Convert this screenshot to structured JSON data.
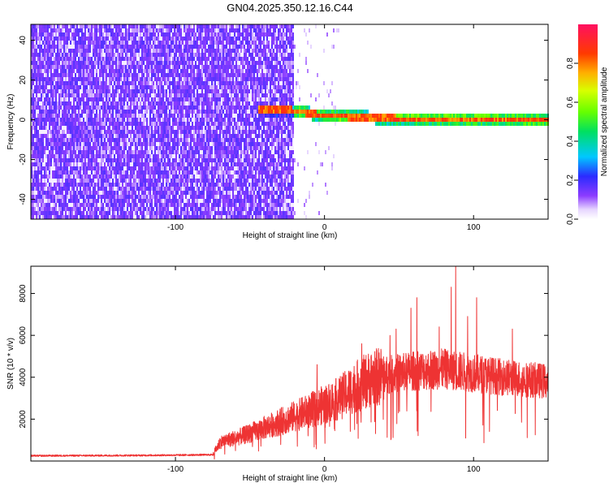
{
  "title": "GN04.2025.350.12.16.C44",
  "chart_data": [
    {
      "type": "heatmap",
      "xlabel": "Height of straight line (km)",
      "ylabel": "Frequency (Hz)",
      "xlim": [
        -197,
        150
      ],
      "ylim": [
        -50,
        48
      ],
      "x_ticks": [
        -100,
        0,
        100
      ],
      "x_tick_labels": [
        "-100",
        "0",
        "100"
      ],
      "y_ticks": [
        -40,
        -20,
        0,
        20,
        40
      ],
      "y_tick_labels": [
        "-40",
        "-20",
        "0",
        "20",
        "40"
      ],
      "colorbar": {
        "label": "Normalized spectral amplitude",
        "range": [
          0,
          1
        ],
        "ticks": [
          0.0,
          0.2,
          0.4,
          0.6,
          0.8
        ],
        "tick_labels": [
          "0.0",
          "0.2",
          "0.4",
          "0.6",
          "0.8"
        ]
      },
      "features": {
        "noise_region_x": [
          -197,
          -20
        ],
        "noise_level": 0.15,
        "signal_band_center_hz": [
          {
            "x": -25,
            "hz": 5
          },
          {
            "x": 0,
            "hz": 2
          },
          {
            "x": 50,
            "hz": 0.5
          },
          {
            "x": 150,
            "hz": 0
          }
        ],
        "signal_band_width_hz": 6,
        "signal_peak_level": 0.9
      }
    },
    {
      "type": "line",
      "xlabel": "Height of straight line (km)",
      "ylabel": "SNR (10 * v/v)",
      "xlim": [
        -197,
        150
      ],
      "ylim": [
        0,
        9300
      ],
      "x_ticks": [
        -100,
        0,
        100
      ],
      "x_tick_labels": [
        "-100",
        "0",
        "100"
      ],
      "y_ticks": [
        2000,
        4000,
        6000,
        8000
      ],
      "y_tick_labels": [
        "2000",
        "4000",
        "6000",
        "8000"
      ],
      "series": [
        {
          "color": "#ee3333",
          "envelope": [
            {
              "x": -197,
              "y": 250
            },
            {
              "x": -120,
              "y": 270
            },
            {
              "x": -75,
              "y": 300
            },
            {
              "x": -70,
              "y": 900
            },
            {
              "x": -55,
              "y": 1200
            },
            {
              "x": -40,
              "y": 1600
            },
            {
              "x": -25,
              "y": 2000
            },
            {
              "x": -10,
              "y": 2400
            },
            {
              "x": 0,
              "y": 2700
            },
            {
              "x": 10,
              "y": 3000
            },
            {
              "x": 20,
              "y": 3500
            },
            {
              "x": 30,
              "y": 3900
            },
            {
              "x": 40,
              "y": 4100
            },
            {
              "x": 60,
              "y": 4300
            },
            {
              "x": 80,
              "y": 4400
            },
            {
              "x": 100,
              "y": 4200
            },
            {
              "x": 120,
              "y": 4000
            },
            {
              "x": 150,
              "y": 3800
            }
          ],
          "spikes": [
            {
              "x": -5,
              "y": 4600
            },
            {
              "x": 25,
              "y": 5600
            },
            {
              "x": 44,
              "y": 6000
            },
            {
              "x": 48,
              "y": 6300
            },
            {
              "x": 58,
              "y": 7300
            },
            {
              "x": 62,
              "y": 7800
            },
            {
              "x": 77,
              "y": 6400
            },
            {
              "x": 85,
              "y": 8300
            },
            {
              "x": 88,
              "y": 9300
            },
            {
              "x": 96,
              "y": 6900
            },
            {
              "x": 102,
              "y": 7800
            },
            {
              "x": 126,
              "y": 6300
            }
          ]
        }
      ]
    }
  ]
}
